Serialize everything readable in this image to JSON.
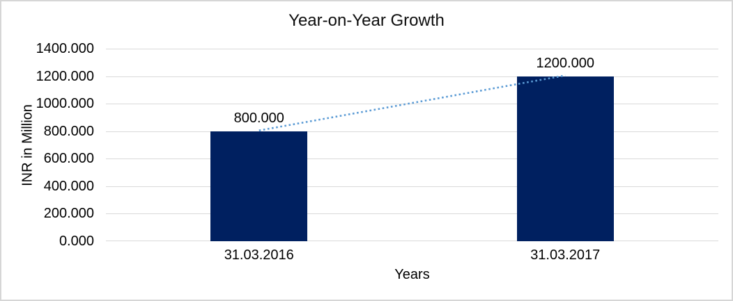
{
  "chart_data": {
    "type": "bar",
    "title": "Year-on-Year Growth",
    "xlabel": "Years",
    "ylabel": "INR in Million",
    "categories": [
      "31.03.2016",
      "31.03.2017"
    ],
    "series": [
      {
        "name": "INR in Million",
        "values": [
          800,
          1200
        ]
      }
    ],
    "data_labels": [
      "800.000",
      "1200.000"
    ],
    "ylim": [
      0,
      1400
    ],
    "ytick_step": 200,
    "ytick_labels": [
      "0.000",
      "200.000",
      "400.000",
      "600.000",
      "800.000",
      "1000.000",
      "1200.000",
      "1400.000"
    ],
    "grid": true,
    "legend": "none",
    "trendline": {
      "style": "dotted",
      "connects": [
        "800.000",
        "1200.000"
      ]
    }
  },
  "colors": {
    "bar_fill": "#002060",
    "trendline": "#5B9BD5",
    "gridline": "#D9D9D9",
    "text": "#000000",
    "frame_border": "#D6D6D6",
    "background": "#FFFFFF"
  }
}
